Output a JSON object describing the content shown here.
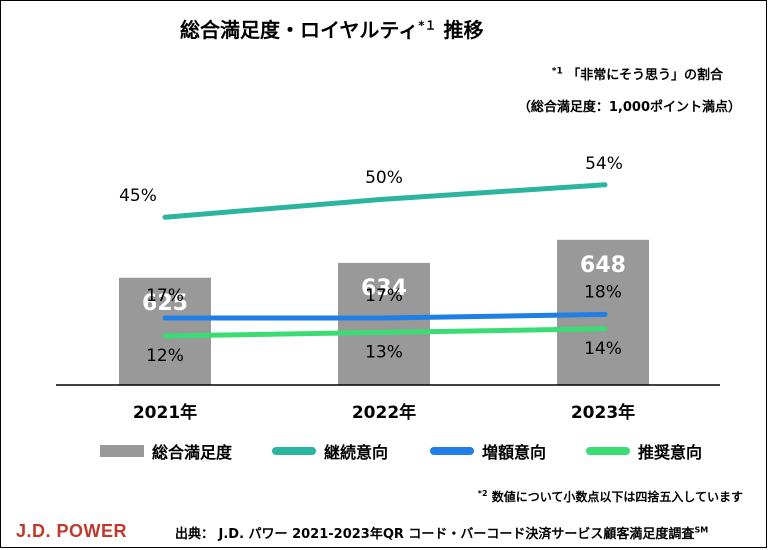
{
  "title": {
    "main": "総合満足度・ロイヤルティ",
    "sup": "*１",
    "suffix": " 推移"
  },
  "note1": {
    "sup": "*1",
    "text": "「非常にそう思う」の割合"
  },
  "note2": "（総合満足度：1,000ポイント満点）",
  "colors": {
    "bar": "#999999",
    "continuation": "#2bb5a0",
    "increase": "#1f7fe6",
    "recommend": "#3cdc74"
  },
  "chart_data": {
    "type": "bar",
    "categories": [
      "2021年",
      "2022年",
      "2023年"
    ],
    "series": [
      {
        "name": "総合満足度",
        "kind": "bar",
        "values": [
          625,
          634,
          648
        ]
      },
      {
        "name": "継続意向",
        "kind": "line",
        "values": [
          45,
          50,
          54
        ],
        "labels": [
          "45%",
          "50%",
          "54%"
        ]
      },
      {
        "name": "増額意向",
        "kind": "line",
        "values": [
          17,
          17,
          18
        ],
        "labels": [
          "17%",
          "17%",
          "18%"
        ]
      },
      {
        "name": "推奨意向",
        "kind": "line",
        "values": [
          12,
          13,
          14
        ],
        "labels": [
          "12%",
          "13%",
          "14%"
        ]
      }
    ],
    "bar_value_labels": [
      "625",
      "634",
      "648"
    ]
  },
  "legend": [
    "総合満足度",
    "継続意向",
    "増額意向",
    "推奨意向"
  ],
  "footnote": {
    "sup": "*2",
    "text": "数値について小数点以下は四捨五入しています"
  },
  "brand": "J.D. POWER",
  "source": {
    "text": "出典：  J.D. パワー 2021-2023年QR コード・バーコード決済サービス顧客満足度調査",
    "sup": "SM"
  }
}
